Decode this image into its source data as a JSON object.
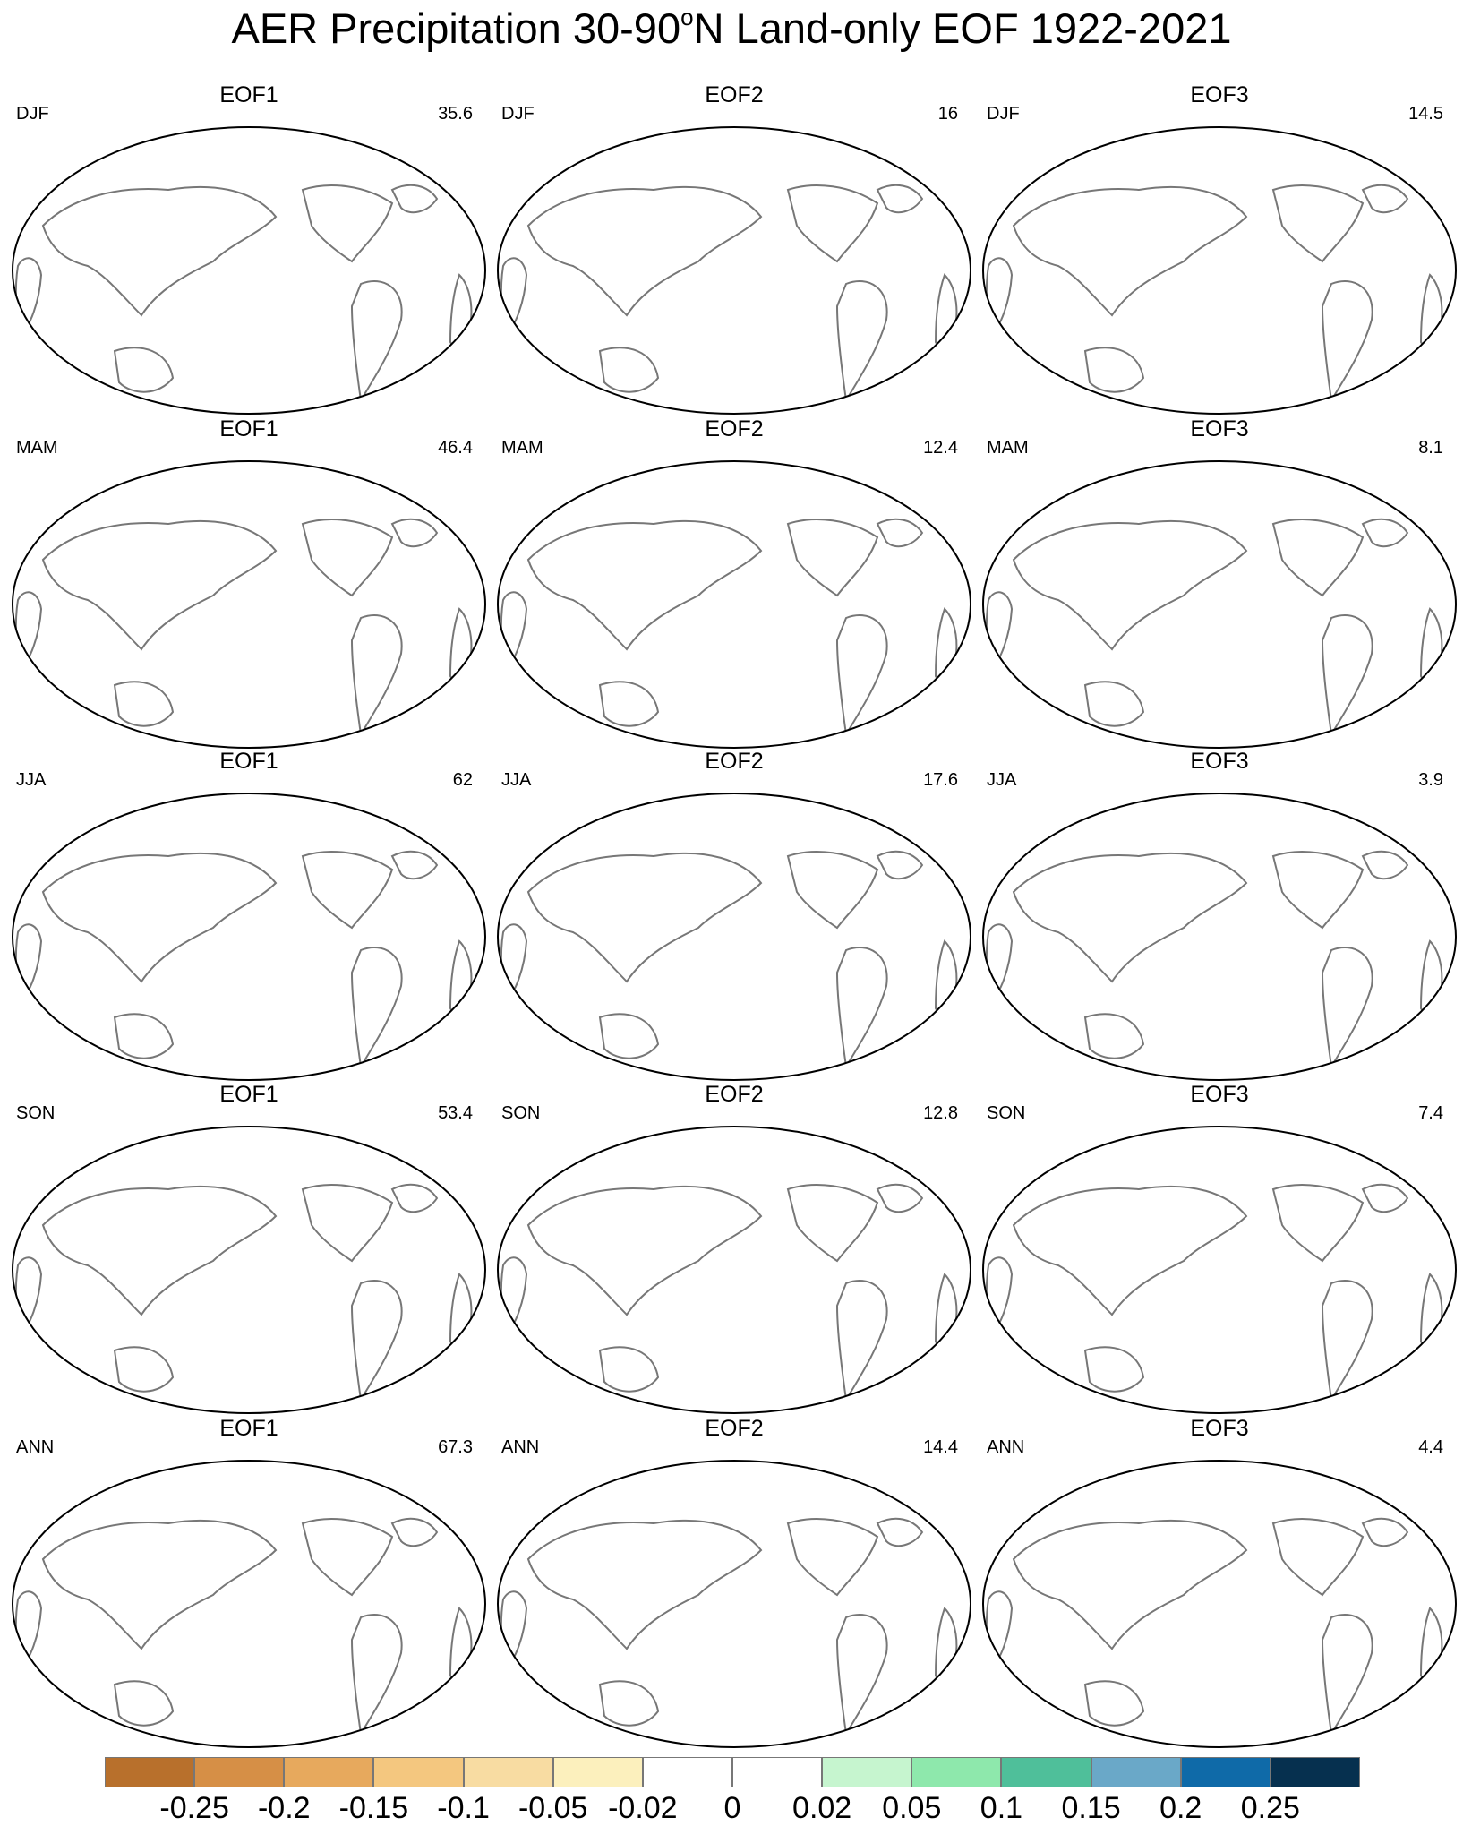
{
  "title_main": "AER Precipitation 30-90",
  "title_sup": "o",
  "title_rest": "N Land-only EOF 1922-2021",
  "panels": [
    {
      "season": "DJF",
      "eof": "EOF1",
      "variance": "35.6"
    },
    {
      "season": "DJF",
      "eof": "EOF2",
      "variance": "16"
    },
    {
      "season": "DJF",
      "eof": "EOF3",
      "variance": "14.5"
    },
    {
      "season": "MAM",
      "eof": "EOF1",
      "variance": "46.4"
    },
    {
      "season": "MAM",
      "eof": "EOF2",
      "variance": "12.4"
    },
    {
      "season": "MAM",
      "eof": "EOF3",
      "variance": "8.1"
    },
    {
      "season": "JJA",
      "eof": "EOF1",
      "variance": "62"
    },
    {
      "season": "JJA",
      "eof": "EOF2",
      "variance": "17.6"
    },
    {
      "season": "JJA",
      "eof": "EOF3",
      "variance": "3.9"
    },
    {
      "season": "SON",
      "eof": "EOF1",
      "variance": "53.4"
    },
    {
      "season": "SON",
      "eof": "EOF2",
      "variance": "12.8"
    },
    {
      "season": "SON",
      "eof": "EOF3",
      "variance": "7.4"
    },
    {
      "season": "ANN",
      "eof": "EOF1",
      "variance": "67.3"
    },
    {
      "season": "ANN",
      "eof": "EOF2",
      "variance": "14.4"
    },
    {
      "season": "ANN",
      "eof": "EOF3",
      "variance": "4.4"
    }
  ],
  "colorbar": {
    "colors": [
      "#b8702c",
      "#d68f46",
      "#e7a95d",
      "#f4c77f",
      "#f8dca2",
      "#fcf0bd",
      "#ffffff",
      "#ffffff",
      "#c6f5cf",
      "#8ee8ac",
      "#4fbf9a",
      "#6aa8c8",
      "#0f6aa8",
      "#06304f"
    ],
    "labels": [
      "-0.25",
      "-0.2",
      "-0.15",
      "-0.1",
      "-0.05",
      "-0.02",
      "0",
      "0.02",
      "0.05",
      "0.1",
      "0.15",
      "0.2",
      "0.25"
    ]
  }
}
